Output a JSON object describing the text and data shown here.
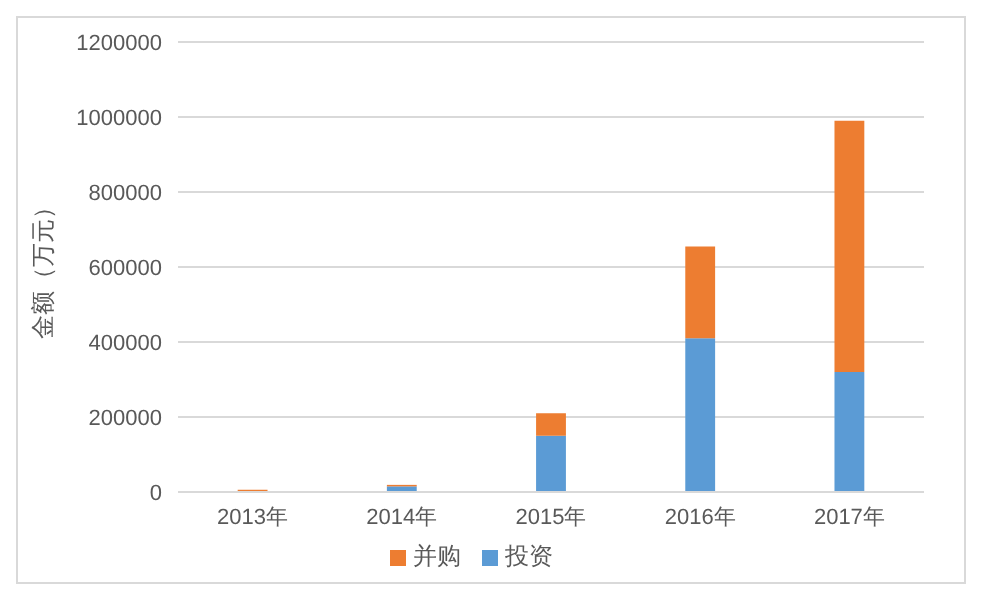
{
  "chart_data": {
    "type": "bar",
    "stacked": true,
    "ylabel": "金额（万元）",
    "categories": [
      "2013年",
      "2014年",
      "2015年",
      "2016年",
      "2017年"
    ],
    "series": [
      {
        "name": "投资",
        "color": "#5b9bd5",
        "values": [
          2000,
          15000,
          150000,
          410000,
          320000
        ]
      },
      {
        "name": "并购",
        "color": "#ed7d31",
        "values": [
          4000,
          4000,
          60000,
          245000,
          670000
        ]
      }
    ],
    "ylim": [
      0,
      1200000
    ],
    "yticks": [
      0,
      200000,
      400000,
      600000,
      800000,
      1000000,
      1200000
    ],
    "grid": "y",
    "legend": "bottom"
  }
}
